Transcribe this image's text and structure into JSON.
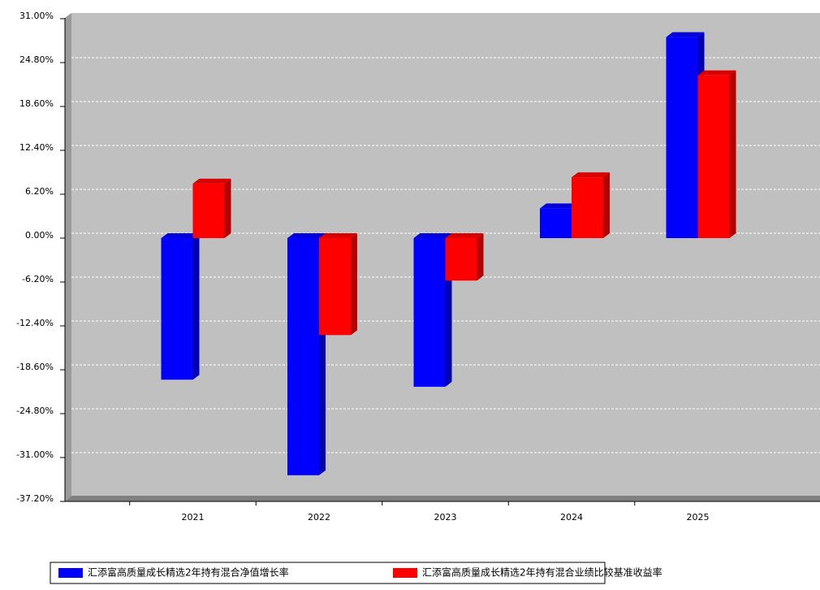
{
  "chart_data": {
    "type": "bar3d",
    "categories": [
      "2021",
      "2022",
      "2023",
      "2024",
      "2025"
    ],
    "series": [
      {
        "name": "汇添富高质量成长精选2年持有混合净值增长率",
        "color": "#0000ff",
        "values": [
          -20.0,
          -33.5,
          -21.0,
          4.2,
          28.4
        ]
      },
      {
        "name": "汇添富高质量成长精选2年持有混合业绩比较基准收益率",
        "color": "#ff0000",
        "values": [
          7.7,
          -13.7,
          -6.0,
          8.6,
          23.0
        ]
      }
    ],
    "ylim": [
      -37.2,
      31
    ],
    "yticks": [
      {
        "value": -37.2,
        "label": "-37.20%"
      },
      {
        "value": -31,
        "label": "-31.00%"
      },
      {
        "value": -24.8,
        "label": "-24.80%"
      },
      {
        "value": -18.6,
        "label": "-18.60%"
      },
      {
        "value": -12.4,
        "label": "-12.40%"
      },
      {
        "value": -6.2,
        "label": "-6.20%"
      },
      {
        "value": 0,
        "label": "0.00%"
      },
      {
        "value": 6.2,
        "label": "6.20%"
      },
      {
        "value": 12.4,
        "label": "12.40%"
      },
      {
        "value": 18.6,
        "label": "18.60%"
      },
      {
        "value": 24.8,
        "label": "24.80%"
      },
      {
        "value": 31,
        "label": "31.00%"
      }
    ],
    "grid": true
  }
}
